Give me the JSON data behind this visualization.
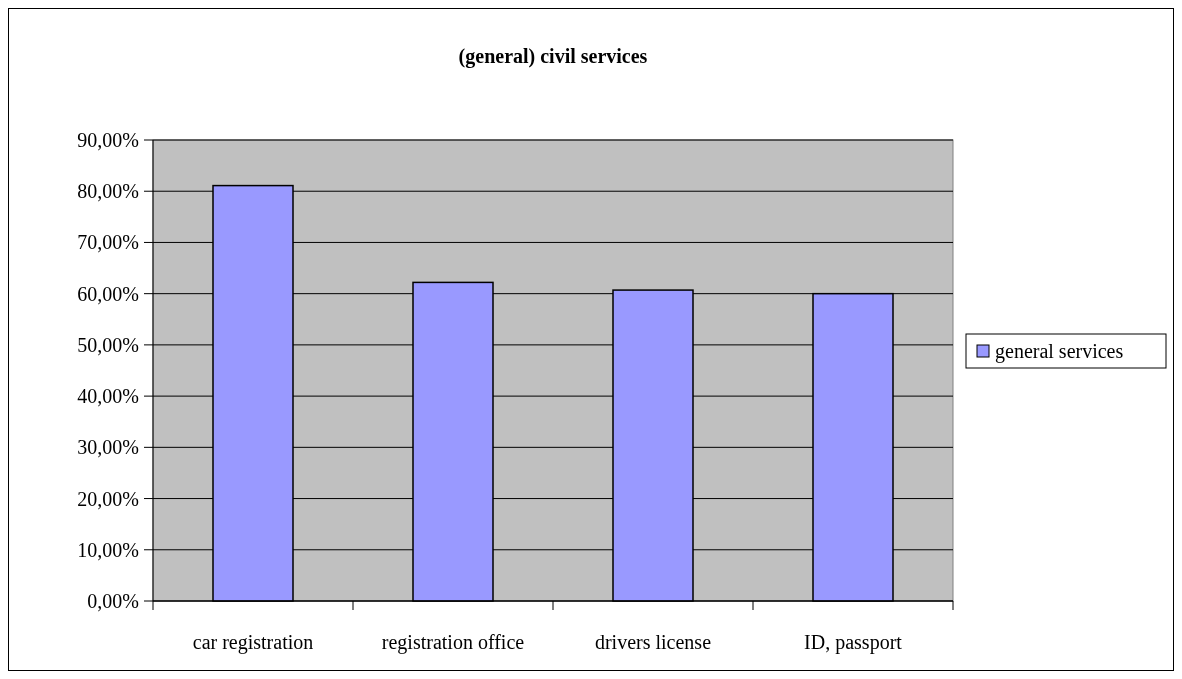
{
  "chart_data": {
    "type": "bar",
    "title": "(general) civil services",
    "categories": [
      "car registration",
      "registration office",
      "drivers license",
      "ID, passport"
    ],
    "series": [
      {
        "name": "general services",
        "color": "#9999ff",
        "values": [
          81.1,
          62.2,
          60.7,
          60.0
        ]
      }
    ],
    "ylim": [
      0,
      90
    ],
    "yticks": [
      {
        "value": 0,
        "label": "0,00%"
      },
      {
        "value": 10,
        "label": "10,00%"
      },
      {
        "value": 20,
        "label": "20,00%"
      },
      {
        "value": 30,
        "label": "30,00%"
      },
      {
        "value": 40,
        "label": "40,00%"
      },
      {
        "value": 50,
        "label": "50,00%"
      },
      {
        "value": 60,
        "label": "60,00%"
      },
      {
        "value": 70,
        "label": "70,00%"
      },
      {
        "value": 80,
        "label": "80,00%"
      },
      {
        "value": 90,
        "label": "90,00%"
      }
    ],
    "grid": "y",
    "legend": "right"
  }
}
